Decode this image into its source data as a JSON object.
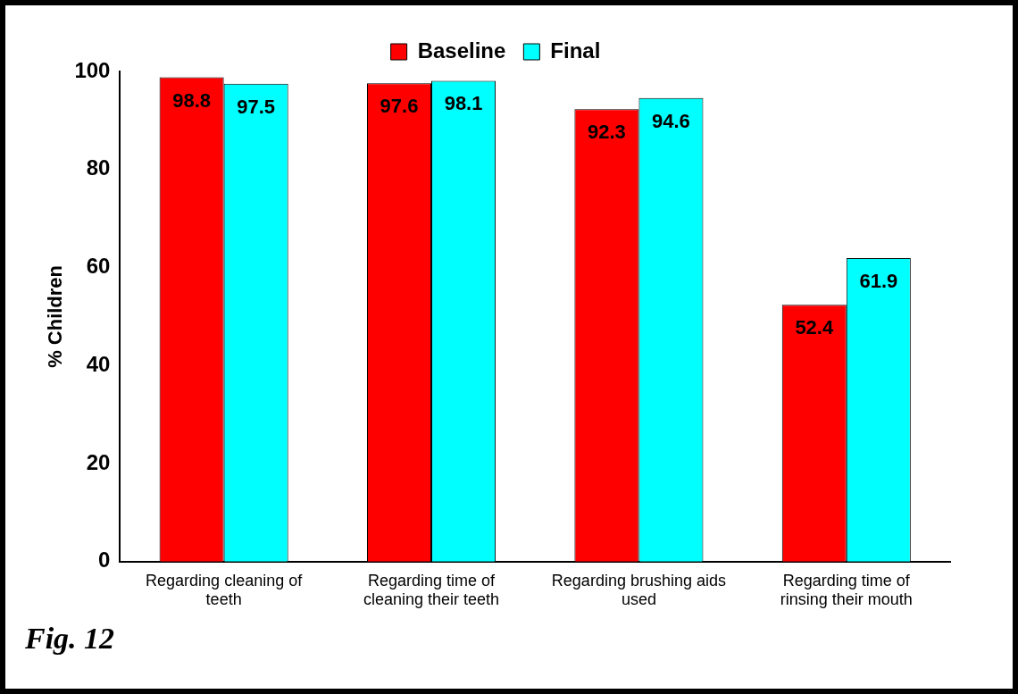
{
  "chart_data": {
    "type": "bar",
    "ylabel": "% Children",
    "categories": [
      "Regarding cleaning of teeth",
      "Regarding time of cleaning their teeth",
      "Regarding brushing aids used",
      "Regarding time of rinsing their mouth"
    ],
    "series": [
      {
        "name": "Baseline",
        "color": "#ff0000",
        "values": [
          98.8,
          97.6,
          92.3,
          52.4
        ]
      },
      {
        "name": "Final",
        "color": "#00ffff",
        "values": [
          97.5,
          98.1,
          94.6,
          61.9
        ]
      }
    ],
    "ylim": [
      0,
      100
    ],
    "yticks": [
      0,
      20,
      40,
      60,
      80,
      100
    ],
    "grid": false,
    "legend": "top",
    "data_labels": true,
    "annotations": [
      "Fig. 12"
    ]
  }
}
